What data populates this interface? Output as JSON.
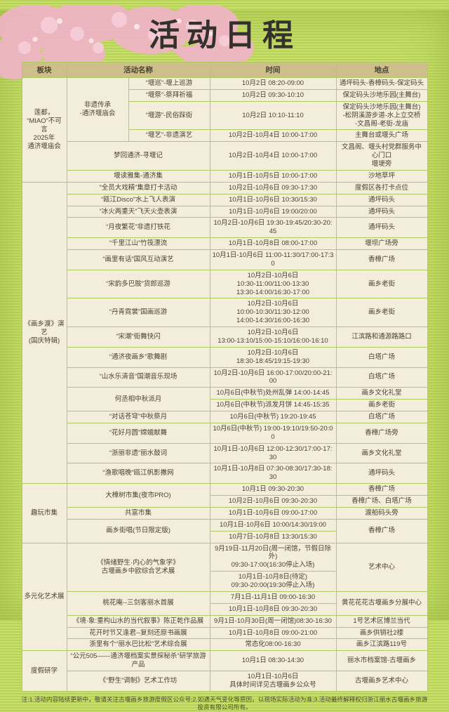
{
  "title": "活动日程",
  "colors": {
    "background_green": "#b9d455",
    "stripe_green": "#c8df70",
    "header_tan": "#cdbe8a",
    "cell_cream": "#f3eedb",
    "grid_green": "#aecb62",
    "text_brown": "#4c4134",
    "title_black": "#33312c",
    "blossom_pink": "#f2b3ca"
  },
  "decor": {
    "blossom": "pink cherry-blossom cluster, top-left corner"
  },
  "table": {
    "header": [
      {
        "label": "板块",
        "cs": 1
      },
      {
        "label": "活动名称",
        "cs": 2
      },
      {
        "label": "时间",
        "cs": 1
      },
      {
        "label": "地点",
        "cs": 1
      }
    ],
    "rows": [
      [
        {
          "t": "莲都，\n“MIAO”不可言\n2025年\n通济堰庙会",
          "rs": 6,
          "k": "section"
        },
        {
          "t": "非遗传承\n-通济堰庙会",
          "rs": 4,
          "k": "group"
        },
        {
          "t": "“堰巡”-堰上巡游",
          "k": "activity"
        },
        {
          "t": "10月2日 08:20-09:00",
          "k": "time"
        },
        {
          "t": "通坪码头-香樟码头-保定码头",
          "k": "location"
        }
      ],
      [
        {
          "t": "“堰祭”-祭拜祈福",
          "k": "activity"
        },
        {
          "t": "10月2日 09:30-10:10",
          "k": "time"
        },
        {
          "t": "保定码头沙地乐园(主舞台)",
          "k": "location"
        }
      ],
      [
        {
          "t": "“堰游”-民俗踩街",
          "k": "activity"
        },
        {
          "t": "10月2日 10:10-11:10",
          "k": "time"
        },
        {
          "t": "保定码头沙地乐园(主舞台)\n-松阴溪游步道-水上立交桥\n-文昌阁-老街-龙庙",
          "k": "location"
        }
      ],
      [
        {
          "t": "“堰艺”-非遗演艺",
          "k": "activity"
        },
        {
          "t": "10月2日-10月4日 10:00-17:00",
          "k": "time"
        },
        {
          "t": "主舞台或堰头广场",
          "k": "location"
        }
      ],
      [
        {
          "t": "梦回通济-寻堰记",
          "cs": 2,
          "k": "activity"
        },
        {
          "t": "10月2日-10月4日 10:00-17:00",
          "k": "time"
        },
        {
          "t": "文昌阁、堰头村党群服务中心门口\n堰埂旁",
          "k": "location"
        }
      ],
      [
        {
          "t": "堰读雅集-通济集",
          "cs": 2,
          "k": "activity"
        },
        {
          "t": "10月1日-10月5日 10:00-17:00",
          "k": "time"
        },
        {
          "t": "沙地草坪",
          "k": "location"
        }
      ],
      [
        {
          "t": "《画乡渡》演艺\n(国庆特辑)",
          "rs": 17,
          "k": "section"
        },
        {
          "t": "“全员大戏精”集章打卡活动",
          "cs": 2,
          "k": "activity"
        },
        {
          "t": "10月2日-10月6日 09:30-17:30",
          "k": "time"
        },
        {
          "t": "度假区各打卡点位",
          "k": "location"
        }
      ],
      [
        {
          "t": "“瓯江Disco”水上飞人表演",
          "cs": 2,
          "k": "activity"
        },
        {
          "t": "10月1日-10月6日 10:30/15:30",
          "k": "time"
        },
        {
          "t": "通坪码头",
          "k": "location"
        }
      ],
      [
        {
          "t": "“冰火两重天”飞天火壶表演",
          "cs": 2,
          "k": "activity"
        },
        {
          "t": "10月1日-10月6日 19:00/20:00",
          "k": "time"
        },
        {
          "t": "通坪码头",
          "k": "location"
        }
      ],
      [
        {
          "t": "“月夜繁花”非遗打铁花",
          "cs": 2,
          "k": "activity"
        },
        {
          "t": "10月2日-10月6日 19:30-19:45/20:30-20:45",
          "k": "time"
        },
        {
          "t": "通坪码头",
          "k": "location"
        }
      ],
      [
        {
          "t": "“千里江山”竹筏漂流",
          "cs": 2,
          "k": "activity"
        },
        {
          "t": "10月1日-10月8日 08:00-17:00",
          "k": "time"
        },
        {
          "t": "堰坝广场旁",
          "k": "location"
        }
      ],
      [
        {
          "t": "“画里有话”国风互动演艺",
          "cs": 2,
          "k": "activity"
        },
        {
          "t": "10月1日-10月6日 11:00-11:30/17:00-17:30",
          "k": "time"
        },
        {
          "t": "香樟广场",
          "k": "location"
        }
      ],
      [
        {
          "t": "“宋韵多巴胺”货郎巡游",
          "cs": 2,
          "k": "activity"
        },
        {
          "t": "10月2日-10月6日\n10:30-11:00/11:00-13:30\n13:30-14:00/16:30-17:00",
          "k": "time"
        },
        {
          "t": "画乡老街",
          "k": "location"
        }
      ],
      [
        {
          "t": "“丹青霓裳”国画巡游",
          "cs": 2,
          "k": "activity"
        },
        {
          "t": "10月2日-10月6日\n10:00-10:30/11:30-12:00\n14:00-14:30/16:00-16:30",
          "k": "time"
        },
        {
          "t": "画乡老街",
          "k": "location"
        }
      ],
      [
        {
          "t": "“宋潮”街舞快闪",
          "cs": 2,
          "k": "activity"
        },
        {
          "t": "10月2日-10月6日\n13:00-13:10/15:00-15:10/16:00-16:10",
          "k": "time"
        },
        {
          "t": "江滨路和通源路路口",
          "k": "location"
        }
      ],
      [
        {
          "t": "“通济夜画乡”歌舞剧",
          "cs": 2,
          "k": "activity"
        },
        {
          "t": "10月2日-10月6日\n18:30-18:45/19:15-19:30",
          "k": "time"
        },
        {
          "t": "白塔广场",
          "k": "location"
        }
      ],
      [
        {
          "t": "“山水乐清音”国潮音乐现场",
          "cs": 2,
          "k": "activity"
        },
        {
          "t": "10月2日-10月6日 16:00-17:00/20:00-21:00",
          "k": "time"
        },
        {
          "t": "白塔广场",
          "k": "location"
        }
      ],
      [
        {
          "t": "何丞相中秋派月",
          "rs": 2,
          "cs": 2,
          "k": "activity"
        },
        {
          "t": "10月6日(中秋节)处州乱弹 14:00-14:45",
          "k": "time"
        },
        {
          "t": "画乡文化礼堂",
          "k": "location"
        }
      ],
      [
        {
          "t": "10月6日(中秋节)派发月饼 14:45-15:35",
          "k": "time"
        },
        {
          "t": "画乡老街",
          "k": "location"
        }
      ],
      [
        {
          "t": "“对话苍穹”中秋祭月",
          "cs": 2,
          "k": "activity"
        },
        {
          "t": "10月6日(中秋节) 19:20-19:45",
          "k": "time"
        },
        {
          "t": "白塔广场",
          "k": "location"
        }
      ],
      [
        {
          "t": "“花好月圆”嫦娥献舞",
          "cs": 2,
          "k": "activity"
        },
        {
          "t": "10月6日(中秋节) 19:00-19:10/19:50-20:00",
          "k": "time"
        },
        {
          "t": "香樟广场旁",
          "k": "location"
        }
      ],
      [
        {
          "t": "“浙丽非遗”丽水鼓词",
          "cs": 2,
          "k": "activity"
        },
        {
          "t": "10月1日-10月6日 12:00-12:30/17:00-17:30",
          "k": "time"
        },
        {
          "t": "画乡文化礼堂",
          "k": "location"
        }
      ],
      [
        {
          "t": "“渔歌唱晚”瓯江帆影撒网",
          "cs": 2,
          "k": "activity"
        },
        {
          "t": "10月1日-10月8日 07:30-08:30/17:30-18:30",
          "k": "time"
        },
        {
          "t": "通坪码头",
          "k": "location"
        }
      ],
      [
        {
          "t": "趣玩市集",
          "rs": 5,
          "k": "section"
        },
        {
          "t": "大樟树市集(夜市PRO)",
          "rs": 2,
          "cs": 2,
          "k": "activity"
        },
        {
          "t": "10月1日 09:30-20:30",
          "k": "time"
        },
        {
          "t": "香樟广场",
          "k": "location"
        }
      ],
      [
        {
          "t": "10月2日-10月6日 09:30-20:30",
          "k": "time"
        },
        {
          "t": "香樟广场、白塔广场",
          "k": "location"
        }
      ],
      [
        {
          "t": "共富市集",
          "cs": 2,
          "k": "activity"
        },
        {
          "t": "10月1日-10月6日 09:00-17:00",
          "k": "time"
        },
        {
          "t": "渡船码头旁",
          "k": "location"
        }
      ],
      [
        {
          "t": "画乡街唱(节日限定版)",
          "rs": 2,
          "cs": 2,
          "k": "activity"
        },
        {
          "t": "10月1日-10月6日 10:00/14:30/19:00",
          "k": "time"
        },
        {
          "t": "香樟广场",
          "rs": 2,
          "k": "location"
        }
      ],
      [
        {
          "t": "10月7日-10月8日 13:30/15:30",
          "k": "time"
        }
      ],
      [
        {
          "t": "多元化艺术展",
          "rs": 7,
          "k": "section"
        },
        {
          "t": "《情绪野生·内心的气象学》\n古堰画乡中欧综合艺术展",
          "rs": 2,
          "cs": 2,
          "k": "activity"
        },
        {
          "t": "9月19日-11月20日(周一闭馆，节假日除外)\n09:30-17:00(16:30停止入场)",
          "k": "time"
        },
        {
          "t": "艺术中心",
          "rs": 2,
          "k": "location"
        }
      ],
      [
        {
          "t": "10月1日-10月8日(待定)\n09:30-20:00(19:30停止入场)",
          "k": "time"
        }
      ],
      [
        {
          "t": "桃花庵--三剑客丽水首展",
          "rs": 2,
          "cs": 2,
          "k": "activity"
        },
        {
          "t": "7月1日-11月1日 09:00-16:30",
          "k": "time"
        },
        {
          "t": "黄花花花古堰画乡分展中心",
          "rs": 2,
          "k": "location"
        }
      ],
      [
        {
          "t": "10月1日-10月8日 09:30-20:30",
          "k": "time"
        }
      ],
      [
        {
          "t": "《境·象:重构山水的当代叙事》陈正乾作品展",
          "cs": 2,
          "k": "activity"
        },
        {
          "t": "9月1日-10月30日(周一闭馆)08:30-16:30",
          "k": "time"
        },
        {
          "t": "1号艺术区博兰当代",
          "k": "location"
        }
      ],
      [
        {
          "t": "花开时节又逢君--复刻还原书画展",
          "cs": 2,
          "k": "activity"
        },
        {
          "t": "10月1日-10月8日 09:00-21:00",
          "k": "time"
        },
        {
          "t": "画乡供销社2楼",
          "k": "location"
        }
      ],
      [
        {
          "t": "浙里有个“丽水巴比松”艺术综合展",
          "cs": 2,
          "k": "activity"
        },
        {
          "t": "常态化08:00-16:30",
          "k": "time"
        },
        {
          "t": "画乡江滨路119号",
          "k": "location"
        }
      ],
      [
        {
          "t": "度假研学",
          "rs": 2,
          "k": "section"
        },
        {
          "t": "“公元505——通济堰档案实景探秘杀”研学旅游产品",
          "cs": 2,
          "k": "activity"
        },
        {
          "t": "10月1日 08:30-14:30",
          "k": "time"
        },
        {
          "t": "丽水市档案馆-古堰画乡",
          "k": "location"
        }
      ],
      [
        {
          "t": "《“野生”调制》艺术工作坊",
          "cs": 2,
          "k": "activity"
        },
        {
          "t": "10月1日-10月6日\n具体时间详见古堰画乡公众号",
          "k": "time"
        },
        {
          "t": "古堰画乡艺术中心",
          "k": "location"
        }
      ]
    ]
  },
  "footer_note": "注:1.活动内容陆续更新中，敬请关注古堰画乡旅游度假区公众号;2.如遇天气变化等原因，以现场实际活动为准;3.活动最终解释权归浙江丽水古堰画乡旅游投资有限公司所有。"
}
